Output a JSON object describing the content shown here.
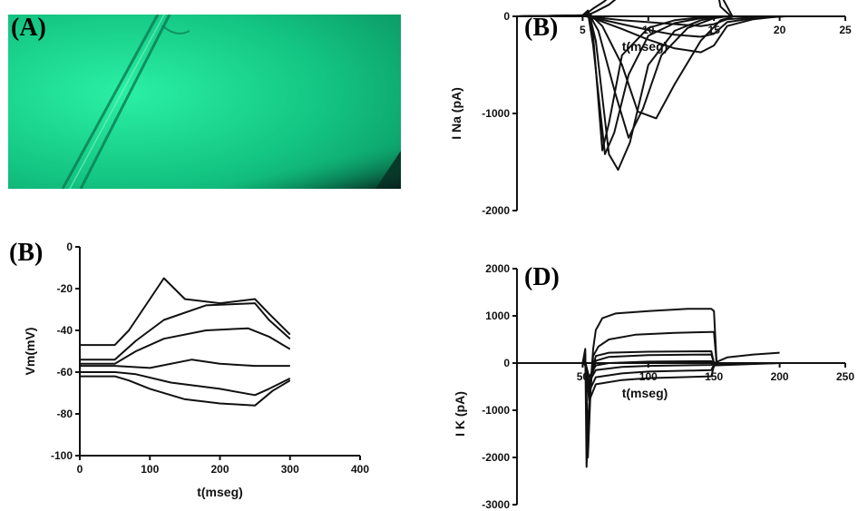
{
  "panels": {
    "A": {
      "label": "(A)"
    },
    "B_top": {
      "label": "(B)"
    },
    "B_bottom": {
      "label": "(B)"
    },
    "D": {
      "label": "(D)"
    }
  },
  "image": {
    "tint": "#1ee29a",
    "vignette": "#0a2a1c"
  },
  "chart_data": [
    {
      "id": "ina",
      "type": "line",
      "xlabel": "t(mseg)",
      "ylabel": "I Na (pA)",
      "xlim": [
        0,
        25
      ],
      "ylim": [
        -2000,
        0
      ],
      "xticks": [
        5,
        10,
        15,
        20,
        25
      ],
      "yticks": [
        0,
        -1000,
        -2000
      ],
      "series": [
        {
          "x": [
            0,
            4,
            5,
            5.4,
            5.8,
            6.5,
            7,
            8,
            10,
            12,
            14,
            15,
            15.5,
            20.5
          ],
          "y": [
            0,
            0,
            10,
            60,
            -200,
            -1380,
            -1100,
            -400,
            -120,
            -40,
            -10,
            0,
            0,
            0
          ]
        },
        {
          "x": [
            0,
            5,
            5.4,
            5.8,
            6.7,
            7.4,
            8.5,
            10,
            12,
            14,
            15.5,
            20
          ],
          "y": [
            0,
            10,
            40,
            -300,
            -1420,
            -1200,
            -600,
            -200,
            -70,
            -20,
            0,
            0
          ]
        },
        {
          "x": [
            0,
            5,
            5.5,
            6,
            7,
            7.7,
            8.6,
            10,
            12,
            14,
            15.5,
            19.5
          ],
          "y": [
            0,
            8,
            30,
            -250,
            -1420,
            -1580,
            -1300,
            -500,
            -150,
            -40,
            0,
            0
          ]
        },
        {
          "x": [
            0,
            5,
            5.5,
            6.2,
            7.5,
            8.5,
            9.6,
            11,
            13,
            15,
            16
          ],
          "y": [
            0,
            5,
            20,
            -150,
            -800,
            -1250,
            -950,
            -400,
            -120,
            -20,
            0
          ]
        },
        {
          "x": [
            0,
            5,
            5.6,
            6.5,
            8,
            9.2,
            10.6,
            12,
            14,
            15.5,
            16.5
          ],
          "y": [
            0,
            5,
            15,
            -100,
            -500,
            -980,
            -1050,
            -700,
            -250,
            -40,
            0
          ]
        },
        {
          "x": [
            0,
            5,
            5.3,
            5.8,
            6.6,
            7.5,
            8.5,
            10,
            12,
            14,
            14.8,
            15.1,
            15.5,
            16.3
          ],
          "y": [
            0,
            5,
            30,
            80,
            150,
            250,
            320,
            380,
            420,
            440,
            460,
            380,
            100,
            0
          ]
        },
        {
          "x": [
            0,
            5,
            5.5,
            6,
            7,
            8,
            9,
            10,
            12,
            14,
            14.9,
            15.2,
            15.6,
            16.4
          ],
          "y": [
            0,
            5,
            20,
            50,
            120,
            230,
            360,
            440,
            500,
            520,
            520,
            460,
            200,
            0
          ]
        },
        {
          "x": [
            0,
            5,
            6,
            8,
            10,
            12,
            14,
            15,
            16,
            18,
            20.5
          ],
          "y": [
            0,
            10,
            -10,
            -40,
            -60,
            -80,
            -100,
            -80,
            -30,
            -10,
            0
          ]
        },
        {
          "x": [
            0,
            5,
            6,
            8,
            10,
            12,
            14,
            15,
            16,
            18,
            20.5
          ],
          "y": [
            0,
            10,
            -20,
            -80,
            -140,
            -190,
            -210,
            -180,
            -60,
            -20,
            0
          ]
        },
        {
          "x": [
            0,
            5,
            6,
            8,
            10,
            12,
            14,
            15,
            16,
            18,
            20
          ],
          "y": [
            0,
            10,
            -30,
            -130,
            -240,
            -330,
            -370,
            -300,
            -100,
            -30,
            0
          ]
        }
      ]
    },
    {
      "id": "vm",
      "type": "line",
      "xlabel": "t(mseg)",
      "ylabel": "Vm(mV)",
      "xlim": [
        0,
        400
      ],
      "ylim": [
        -100,
        0
      ],
      "xticks": [
        0,
        100,
        200,
        300,
        400
      ],
      "yticks": [
        0,
        -20,
        -40,
        -60,
        -80,
        -100
      ],
      "series": [
        {
          "x": [
            0,
            50,
            70,
            100,
            120,
            150,
            200,
            250,
            270,
            300
          ],
          "y": [
            -47,
            -47,
            -40,
            -25,
            -15,
            -25,
            -27,
            -25,
            -32,
            -42
          ]
        },
        {
          "x": [
            0,
            50,
            80,
            120,
            180,
            250,
            270,
            300
          ],
          "y": [
            -54,
            -54,
            -45,
            -35,
            -28,
            -27,
            -35,
            -44
          ]
        },
        {
          "x": [
            0,
            50,
            80,
            120,
            180,
            240,
            270,
            300
          ],
          "y": [
            -56,
            -56,
            -50,
            -44,
            -40,
            -39,
            -43,
            -49
          ]
        },
        {
          "x": [
            0,
            50,
            100,
            160,
            200,
            250,
            300
          ],
          "y": [
            -57,
            -57,
            -58,
            -54,
            -56,
            -57,
            -57
          ]
        },
        {
          "x": [
            0,
            50,
            80,
            130,
            200,
            250,
            270,
            300
          ],
          "y": [
            -60,
            -60,
            -61,
            -65,
            -68,
            -71,
            -68,
            -63
          ]
        },
        {
          "x": [
            0,
            50,
            70,
            100,
            150,
            200,
            250,
            275,
            300
          ],
          "y": [
            -62,
            -62,
            -64,
            -68,
            -73,
            -75,
            -76,
            -69,
            -64
          ]
        }
      ]
    },
    {
      "id": "ik",
      "type": "line",
      "xlabel": "t(mseg)",
      "ylabel": "I K (pA)",
      "xlim": [
        0,
        250
      ],
      "ylim": [
        -3000,
        2000
      ],
      "xticks": [
        50,
        100,
        150,
        200,
        250
      ],
      "yticks": [
        2000,
        1000,
        0,
        -1000,
        -2000,
        -3000
      ],
      "series": [
        {
          "x": [
            0,
            50,
            52,
            53,
            55,
            58,
            60,
            65,
            75,
            100,
            130,
            148,
            150,
            152,
            200
          ],
          "y": [
            0,
            0,
            300,
            -2200,
            -900,
            300,
            700,
            950,
            1050,
            1100,
            1150,
            1150,
            1100,
            0,
            0
          ]
        },
        {
          "x": [
            0,
            50,
            52,
            54,
            56,
            58,
            62,
            70,
            90,
            120,
            148,
            150,
            152,
            200
          ],
          "y": [
            0,
            0,
            200,
            -2000,
            -600,
            150,
            350,
            500,
            600,
            640,
            660,
            660,
            0,
            0
          ]
        },
        {
          "x": [
            0,
            50,
            52,
            54,
            56,
            60,
            70,
            100,
            148,
            150,
            200
          ],
          "y": [
            0,
            0,
            100,
            -1500,
            -300,
            150,
            220,
            240,
            250,
            0,
            0
          ]
        },
        {
          "x": [
            0,
            50,
            52,
            55,
            60,
            70,
            100,
            148,
            150,
            160,
            180,
            200
          ],
          "y": [
            0,
            0,
            50,
            -500,
            50,
            130,
            170,
            180,
            0,
            120,
            180,
            220
          ]
        },
        {
          "x": [
            0,
            50,
            52,
            55,
            60,
            70,
            100,
            148,
            150,
            200
          ],
          "y": [
            0,
            0,
            20,
            -300,
            -50,
            0,
            30,
            40,
            0,
            0
          ]
        },
        {
          "x": [
            0,
            50,
            52,
            55,
            60,
            80,
            100,
            148,
            150,
            200
          ],
          "y": [
            0,
            0,
            -20,
            -400,
            -150,
            -80,
            -60,
            -40,
            -10,
            0
          ]
        },
        {
          "x": [
            0,
            50,
            52,
            55,
            60,
            80,
            100,
            148,
            150,
            200
          ],
          "y": [
            0,
            0,
            -30,
            -600,
            -300,
            -220,
            -180,
            -150,
            -30,
            0
          ]
        },
        {
          "x": [
            0,
            50,
            52,
            55,
            60,
            80,
            100,
            148,
            150,
            200
          ],
          "y": [
            0,
            0,
            -50,
            -800,
            -450,
            -360,
            -320,
            -280,
            -50,
            0
          ]
        }
      ]
    }
  ]
}
